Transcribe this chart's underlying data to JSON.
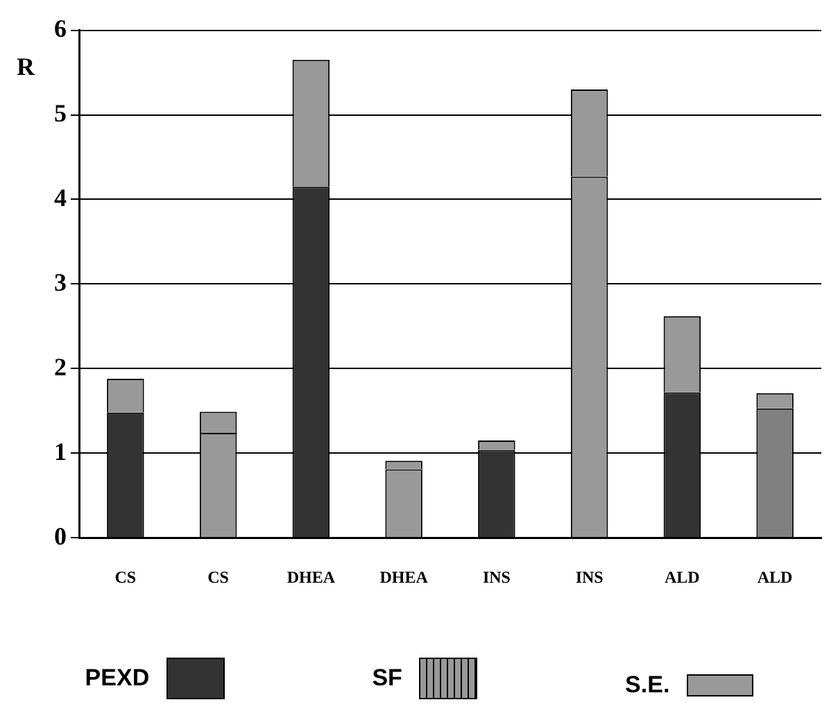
{
  "chart_data": {
    "type": "bar",
    "stacked": true,
    "ylabel": "R",
    "categories": [
      "CS",
      "CS",
      "DHEA",
      "DHEA",
      "INS",
      "INS",
      "ALD",
      "ALD"
    ],
    "series": [
      {
        "name": "PEXD",
        "color": "#333333",
        "values": [
          1.48,
          null,
          4.15,
          null,
          1.04,
          null,
          1.72,
          null
        ]
      },
      {
        "name": "SF",
        "color": "#999999",
        "colors": [
          "#999999",
          "#999999",
          "#999999",
          "#999999",
          "#999999",
          "#999999",
          "#999999",
          "#808080"
        ],
        "values": [
          null,
          1.24,
          null,
          0.81,
          null,
          4.27,
          null,
          1.53
        ]
      },
      {
        "name": "S.E.",
        "color": "#999999",
        "values": [
          0.4,
          0.25,
          1.5,
          0.1,
          0.11,
          1.03,
          0.9,
          0.18
        ]
      }
    ],
    "ylim": [
      0,
      6
    ],
    "yticks": [
      0,
      1,
      2,
      3,
      4,
      5,
      6
    ],
    "grid": "y",
    "legend": "bottom"
  }
}
